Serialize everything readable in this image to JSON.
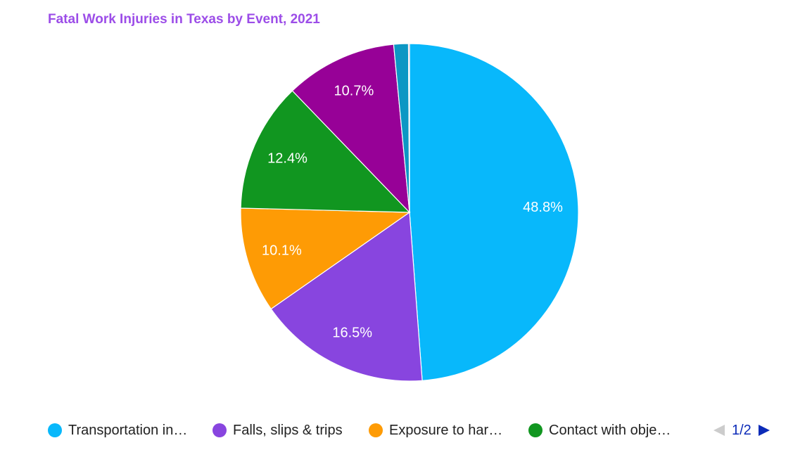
{
  "chart_data": {
    "type": "pie",
    "title": "Fatal Work Injuries in Texas by Event, 2021",
    "slices": [
      {
        "name": "Transportation in…",
        "value": 48.8,
        "label": "48.8%",
        "color": "#08b8fb"
      },
      {
        "name": "Falls, slips & trips",
        "value": 16.5,
        "label": "16.5%",
        "color": "#8845df"
      },
      {
        "name": "Exposure to har…",
        "value": 10.1,
        "label": "10.1%",
        "color": "#fe9b05"
      },
      {
        "name": "Contact with obje…",
        "value": 12.4,
        "label": "12.4%",
        "color": "#119620"
      },
      {
        "name": "",
        "value": 10.7,
        "label": "10.7%",
        "color": "#970197"
      },
      {
        "name": "",
        "value": 1.4,
        "label": "",
        "color": "#0c97c4"
      },
      {
        "name": "",
        "value": 0.1,
        "label": "",
        "color": "#dd4477"
      }
    ],
    "start_direction": "top",
    "clockwise": true,
    "legend_position": "bottom"
  },
  "legend": {
    "items": [
      {
        "label": "Transportation in…",
        "color": "#08b8fb"
      },
      {
        "label": "Falls, slips & trips",
        "color": "#8845df"
      },
      {
        "label": "Exposure to har…",
        "color": "#fe9b05"
      },
      {
        "label": "Contact with obje…",
        "color": "#119620"
      }
    ],
    "page_text": "1/2",
    "prev_icon": "triangle-left-icon",
    "next_icon": "triangle-right-icon",
    "prev_color": "#cccccc",
    "next_color": "#0c2bb8"
  }
}
